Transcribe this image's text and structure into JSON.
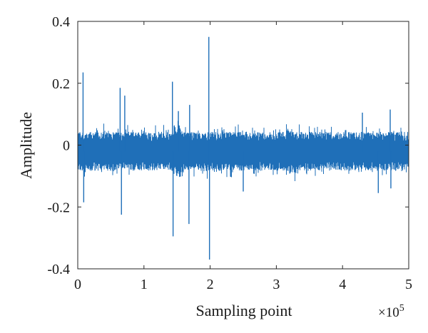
{
  "chart_data": {
    "type": "line",
    "title": "",
    "xlabel": "Sampling point",
    "ylabel": "Amplitude",
    "x_exponent_label": "×10",
    "x_exponent_power": "5",
    "xlim": [
      0,
      500000
    ],
    "ylim": [
      -0.4,
      0.4
    ],
    "x_ticks": [
      0,
      1,
      2,
      3,
      4,
      5
    ],
    "x_tick_labels": [
      "0",
      "1",
      "2",
      "3",
      "4",
      "5"
    ],
    "y_ticks": [
      -0.4,
      -0.2,
      0,
      0.2,
      0.4
    ],
    "y_tick_labels": [
      "-0.4",
      "-0.2",
      "0",
      "0.2",
      "0.4"
    ],
    "grid": false,
    "line_color": "#1f6fb8",
    "series": [
      {
        "description_kind": "dense vibration signal",
        "num_points": 500000,
        "noise_band_upper": 0.04,
        "noise_band_lower": -0.08,
        "noise_center": -0.02,
        "spikes": [
          {
            "x": 8000,
            "y": 0.235
          },
          {
            "x": 9000,
            "y": -0.185
          },
          {
            "x": 64000,
            "y": 0.185
          },
          {
            "x": 66000,
            "y": -0.225
          },
          {
            "x": 71000,
            "y": 0.16
          },
          {
            "x": 143000,
            "y": 0.205
          },
          {
            "x": 144000,
            "y": -0.295
          },
          {
            "x": 152000,
            "y": 0.11
          },
          {
            "x": 169000,
            "y": 0.13
          },
          {
            "x": 168000,
            "y": -0.255
          },
          {
            "x": 198000,
            "y": 0.35
          },
          {
            "x": 199000,
            "y": -0.37
          },
          {
            "x": 250000,
            "y": -0.15
          },
          {
            "x": 430000,
            "y": 0.105
          },
          {
            "x": 454000,
            "y": -0.155
          },
          {
            "x": 472000,
            "y": 0.115
          },
          {
            "x": 473000,
            "y": -0.14
          }
        ]
      }
    ]
  }
}
